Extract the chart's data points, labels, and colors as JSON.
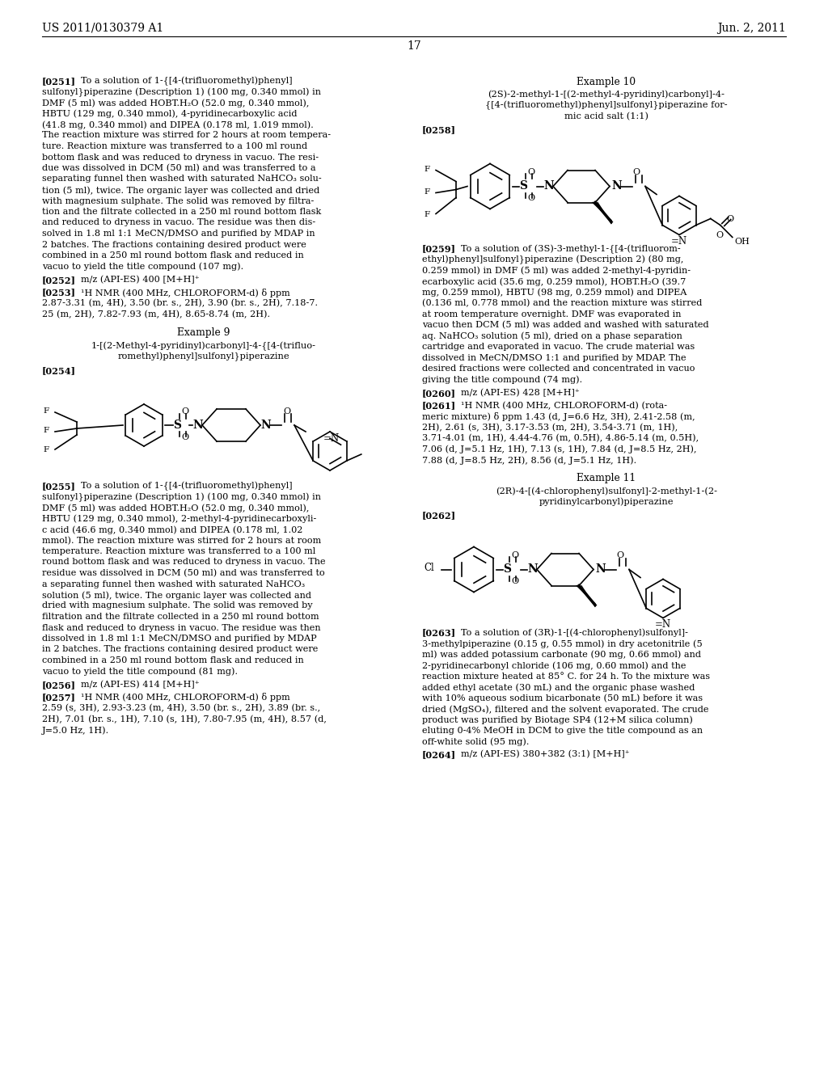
{
  "header_left": "US 2011/0130379 A1",
  "header_right": "Jun. 2, 2011",
  "page_number": "17",
  "bg_color": "#ffffff"
}
